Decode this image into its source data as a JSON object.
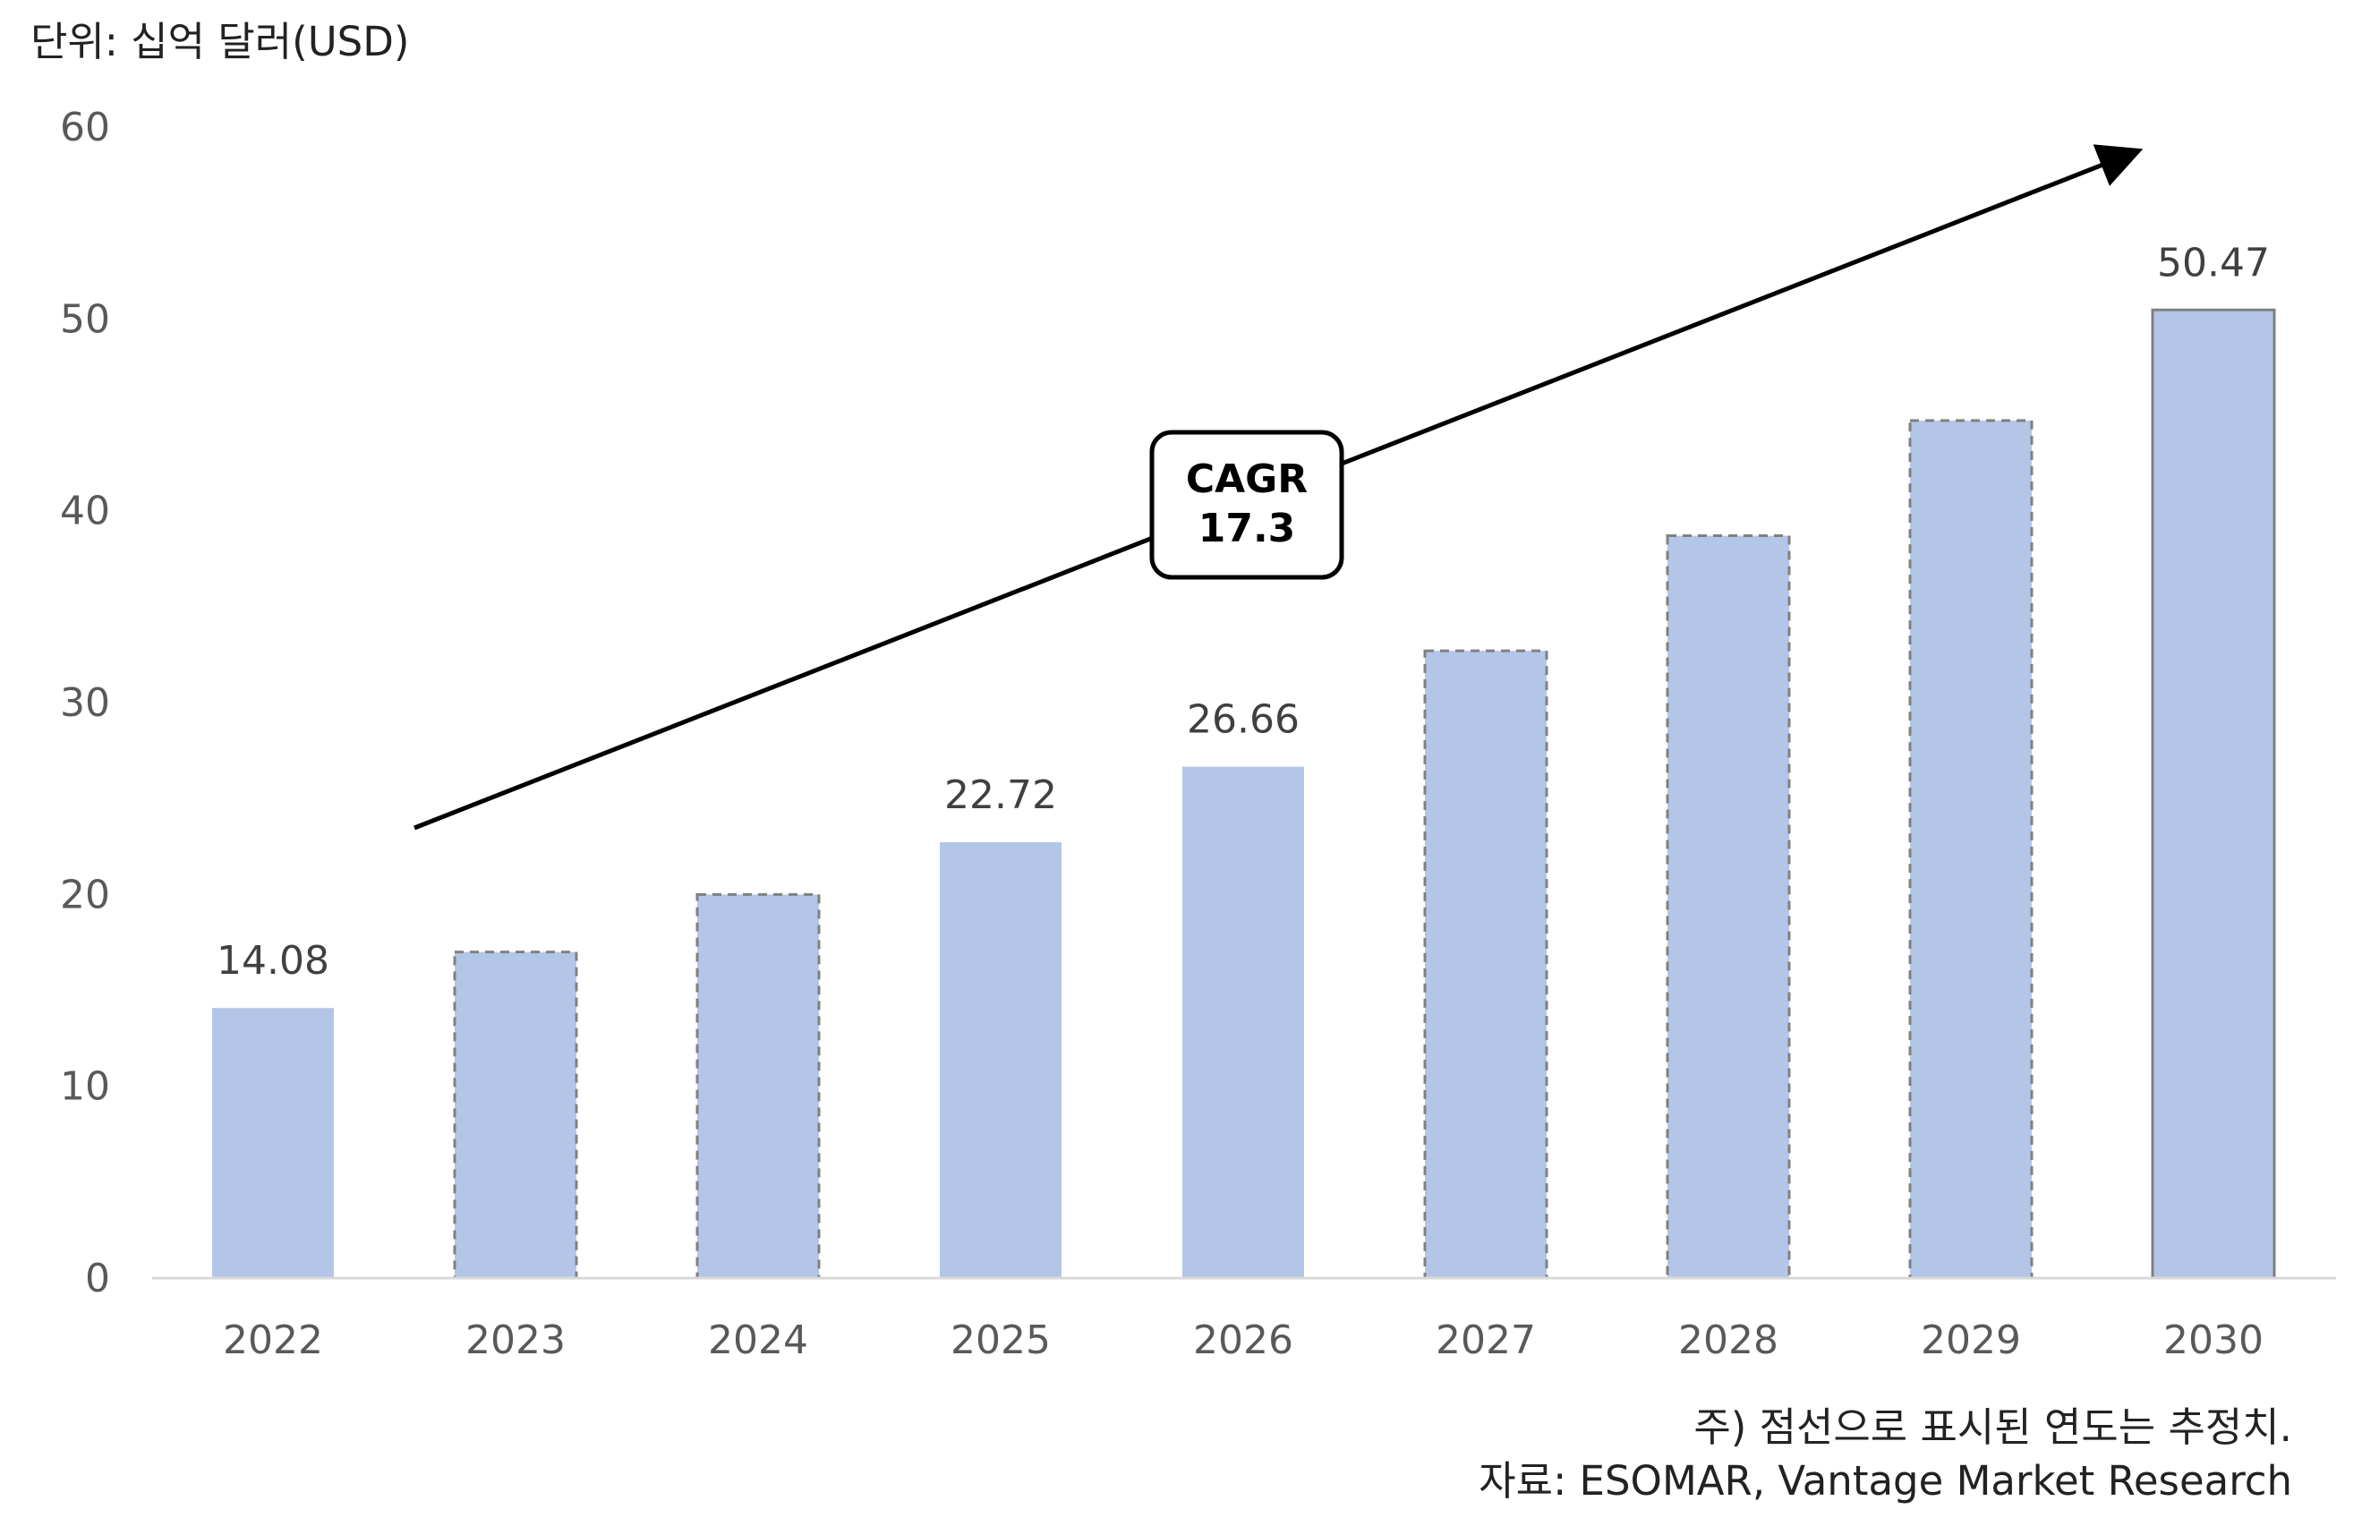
{
  "unit_label": "단위: 십억 달러(USD)",
  "footnote": "주) 점선으로 표시된 연도는 추정치.",
  "source": "자료: ESOMAR, Vantage Market Research",
  "colors": {
    "bar_fill": "#b4c6e7",
    "estimate_border": "#808080",
    "actual_last_border": "#7f7f7f",
    "axis_text": "#595959",
    "label_text": "#404040",
    "arrow": "#000000"
  },
  "chart_data": {
    "type": "bar",
    "title": "",
    "xlabel": "",
    "ylabel": "",
    "categories": [
      "2022",
      "2023",
      "2024",
      "2025",
      "2026",
      "2027",
      "2028",
      "2029",
      "2030"
    ],
    "values": [
      14.08,
      17.0,
      20.0,
      22.72,
      26.66,
      32.7,
      38.7,
      44.7,
      50.47
    ],
    "estimated": [
      false,
      true,
      true,
      false,
      false,
      true,
      true,
      true,
      false
    ],
    "data_labels": [
      "14.08",
      "",
      "",
      "22.72",
      "26.66",
      "",
      "",
      "",
      "50.47"
    ],
    "ylim": [
      0,
      60
    ],
    "yticks": [
      "0",
      "10",
      "20",
      "30",
      "40",
      "50",
      "60"
    ],
    "grid": false,
    "annotation": {
      "line1": "CAGR",
      "line2": "17.3"
    }
  }
}
